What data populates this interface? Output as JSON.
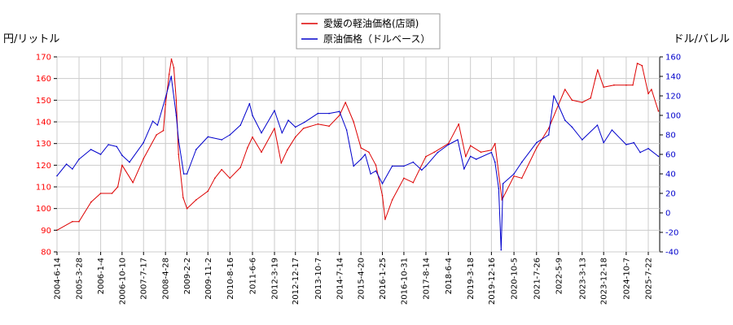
{
  "chart_data": {
    "type": "line",
    "left_axis": {
      "label": "円/リットル",
      "range": [
        80,
        170
      ],
      "ticks": [
        80,
        90,
        100,
        110,
        120,
        130,
        140,
        150,
        160,
        170
      ],
      "color": "#ff0000"
    },
    "right_axis": {
      "label": "ドル/バレル",
      "range": [
        -40,
        160
      ],
      "ticks": [
        -40,
        -20,
        0,
        20,
        40,
        60,
        80,
        100,
        120,
        140,
        160
      ],
      "color": "#0000cc"
    },
    "x_ticks": [
      "2004-6-14",
      "2005-3-28",
      "2006-1-4",
      "2006-10-10",
      "2007-7-17",
      "2008-4-28",
      "2009-2-2",
      "2009-11-2",
      "2010-8-16",
      "2011-6-6",
      "2012-3-19",
      "2012-12-17",
      "2013-10-7",
      "2014-7-14",
      "2015-4-20",
      "2016-1-25",
      "2016-10-31",
      "2017-8-14",
      "2018-6-4",
      "2019-3-18",
      "2019-12-16",
      "2020-10-5",
      "2021-7-26",
      "2022-5-9",
      "2023-3-13",
      "2023-12-18",
      "2024-10-7",
      "2025-7-22"
    ],
    "grid": true,
    "legend_position": "top-center",
    "series": [
      {
        "name": "愛媛の軽油価格(店頭)",
        "axis": "left",
        "color": "#dd0000",
        "x": [
          "2004-6-14",
          "2005-1-1",
          "2005-3-28",
          "2005-9-1",
          "2006-1-4",
          "2006-6-1",
          "2006-8-15",
          "2006-10-10",
          "2007-3-1",
          "2007-7-17",
          "2008-1-1",
          "2008-4-1",
          "2008-4-28",
          "2008-6-15",
          "2008-7-15",
          "2008-8-15",
          "2008-9-15",
          "2008-10-15",
          "2008-12-15",
          "2009-2-2",
          "2009-6-1",
          "2009-11-2",
          "2010-2-1",
          "2010-5-1",
          "2010-8-16",
          "2011-1-1",
          "2011-4-1",
          "2011-6-6",
          "2011-10-1",
          "2012-3-19",
          "2012-6-15",
          "2012-9-1",
          "2012-12-17",
          "2013-4-1",
          "2013-10-7",
          "2014-3-1",
          "2014-7-14",
          "2014-10-1",
          "2015-1-15",
          "2015-4-20",
          "2015-8-1",
          "2015-11-1",
          "2016-1-25",
          "2016-3-1",
          "2016-6-1",
          "2016-10-31",
          "2017-3-1",
          "2017-8-14",
          "2017-12-1",
          "2018-6-4",
          "2018-10-15",
          "2019-1-15",
          "2019-3-18",
          "2019-8-1",
          "2019-12-16",
          "2020-2-1",
          "2020-5-1",
          "2020-10-5",
          "2021-1-15",
          "2021-7-26",
          "2022-1-1",
          "2022-5-9",
          "2022-8-1",
          "2022-11-1",
          "2023-3-13",
          "2023-7-1",
          "2023-9-1",
          "2023-10-1",
          "2023-12-18",
          "2024-5-1",
          "2024-10-7",
          "2025-1-1",
          "2025-3-1",
          "2025-5-1",
          "2025-7-22",
          "2025-9-1",
          "2025-12-1"
        ],
        "values": [
          90,
          94,
          94,
          103,
          107,
          107,
          110,
          120,
          112,
          123,
          134,
          136,
          148,
          162,
          169,
          165,
          150,
          125,
          105,
          100,
          104,
          108,
          114,
          118,
          114,
          119,
          128,
          133,
          126,
          137,
          121,
          127,
          133,
          137,
          139,
          138,
          143,
          149,
          140,
          128,
          126,
          120,
          106,
          95,
          104,
          114,
          112,
          124,
          126,
          130,
          139,
          124,
          129,
          126,
          127,
          130,
          104,
          115,
          114,
          128,
          137,
          148,
          155,
          150,
          149,
          151,
          160,
          164,
          156,
          157,
          157,
          157,
          167,
          166,
          153,
          155,
          145
        ]
      },
      {
        "name": "原油価格（ドルベース）",
        "axis": "right",
        "color": "#0000cc",
        "x": [
          "2004-6-14",
          "2004-10-15",
          "2005-1-1",
          "2005-3-28",
          "2005-8-30",
          "2006-1-4",
          "2006-4-15",
          "2006-8-1",
          "2006-10-10",
          "2007-1-15",
          "2007-7-17",
          "2007-11-15",
          "2008-1-15",
          "2008-4-28",
          "2008-7-11",
          "2008-9-15",
          "2008-10-15",
          "2008-12-22",
          "2009-2-2",
          "2009-6-1",
          "2009-11-2",
          "2010-5-1",
          "2010-8-16",
          "2011-1-1",
          "2011-4-29",
          "2011-6-6",
          "2011-10-1",
          "2012-3-19",
          "2012-6-25",
          "2012-9-15",
          "2012-12-17",
          "2013-4-15",
          "2013-10-7",
          "2014-3-1",
          "2014-7-14",
          "2014-10-15",
          "2015-1-15",
          "2015-4-20",
          "2015-6-15",
          "2015-8-25",
          "2015-11-1",
          "2016-1-25",
          "2016-6-1",
          "2016-10-31",
          "2017-3-1",
          "2017-6-20",
          "2017-8-14",
          "2018-1-15",
          "2018-6-4",
          "2018-10-3",
          "2018-12-24",
          "2019-3-18",
          "2019-6-1",
          "2019-12-16",
          "2020-2-1",
          "2020-3-20",
          "2020-4-20",
          "2020-5-15",
          "2020-10-5",
          "2021-1-15",
          "2021-7-26",
          "2022-1-1",
          "2022-3-8",
          "2022-5-9",
          "2022-8-1",
          "2022-11-1",
          "2023-3-13",
          "2023-9-27",
          "2023-12-18",
          "2024-4-5",
          "2024-10-7",
          "2025-1-15",
          "2025-4-8",
          "2025-7-22",
          "2025-12-1"
        ],
        "values": [
          38,
          50,
          45,
          55,
          65,
          60,
          70,
          68,
          59,
          52,
          72,
          94,
          90,
          118,
          140,
          100,
          75,
          40,
          40,
          65,
          78,
          75,
          80,
          90,
          112,
          100,
          82,
          105,
          82,
          95,
          88,
          93,
          102,
          102,
          104,
          85,
          48,
          55,
          60,
          40,
          43,
          30,
          48,
          48,
          52,
          44,
          48,
          62,
          70,
          75,
          45,
          58,
          55,
          62,
          52,
          25,
          -38,
          30,
          40,
          52,
          72,
          80,
          120,
          110,
          95,
          88,
          75,
          90,
          72,
          85,
          70,
          72,
          62,
          66,
          58
        ]
      }
    ]
  }
}
